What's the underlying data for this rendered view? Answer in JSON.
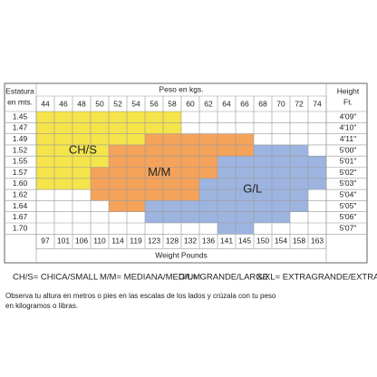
{
  "header": {
    "height_m_label": [
      "Estatura",
      "en mts."
    ],
    "weight_kg_label": "Peso en kgs.",
    "height_ft_label": [
      "Height",
      "Ft."
    ],
    "weight_lb_label": "Weight Pounds"
  },
  "kg": [
    44,
    46,
    48,
    50,
    52,
    54,
    56,
    58,
    60,
    62,
    64,
    66,
    68,
    70,
    72,
    74
  ],
  "pounds": [
    97,
    101,
    106,
    110,
    114,
    119,
    123,
    128,
    132,
    136,
    141,
    145,
    150,
    154,
    158,
    163
  ],
  "heights_m": [
    "1.45",
    "1.47",
    "1.49",
    "1.52",
    "1.55",
    "1.57",
    "1.60",
    "1.62",
    "1.64",
    "1.67",
    "1.70"
  ],
  "heights_ft": [
    "4'09\"",
    "4'10\"",
    "4'11\"",
    "5'00\"",
    "5'01\"",
    "5'02\"",
    "5'03\"",
    "5'04\"",
    "5'05\"",
    "5'06\"",
    "5'07\""
  ],
  "regions": [
    {
      "label": "CH/S",
      "color": "#f5e44a",
      "spans": [
        [
          0,
          0,
          7
        ],
        [
          1,
          0,
          7
        ],
        [
          2,
          0,
          5
        ],
        [
          3,
          0,
          3
        ],
        [
          4,
          0,
          3
        ],
        [
          5,
          0,
          2
        ],
        [
          6,
          0,
          2
        ]
      ]
    },
    {
      "label": "M/M",
      "color": "#f5a35a",
      "spans": [
        [
          2,
          6,
          11
        ],
        [
          3,
          4,
          11
        ],
        [
          4,
          4,
          9
        ],
        [
          5,
          3,
          9
        ],
        [
          6,
          3,
          8
        ],
        [
          7,
          3,
          8
        ],
        [
          8,
          4,
          5
        ]
      ]
    },
    {
      "label": "G/L",
      "color": "#9db4e0",
      "spans": [
        [
          3,
          12,
          14
        ],
        [
          4,
          10,
          15
        ],
        [
          5,
          10,
          15
        ],
        [
          6,
          9,
          15
        ],
        [
          7,
          9,
          14
        ],
        [
          8,
          6,
          14
        ],
        [
          9,
          6,
          13
        ],
        [
          10,
          10,
          11
        ]
      ]
    }
  ],
  "legend": [
    "CH/S= CHICA/SMALL",
    "M/M= MEDIANA/MEDIUM",
    "G/L= GRANDE/LARGE",
    "X/XL= EXTRAGRANDE/EXTRALARGE"
  ],
  "note": "Observa tu altura en metros o pies en las escalas de los lados y crúzala con tu peso en kilogramos o libras."
}
